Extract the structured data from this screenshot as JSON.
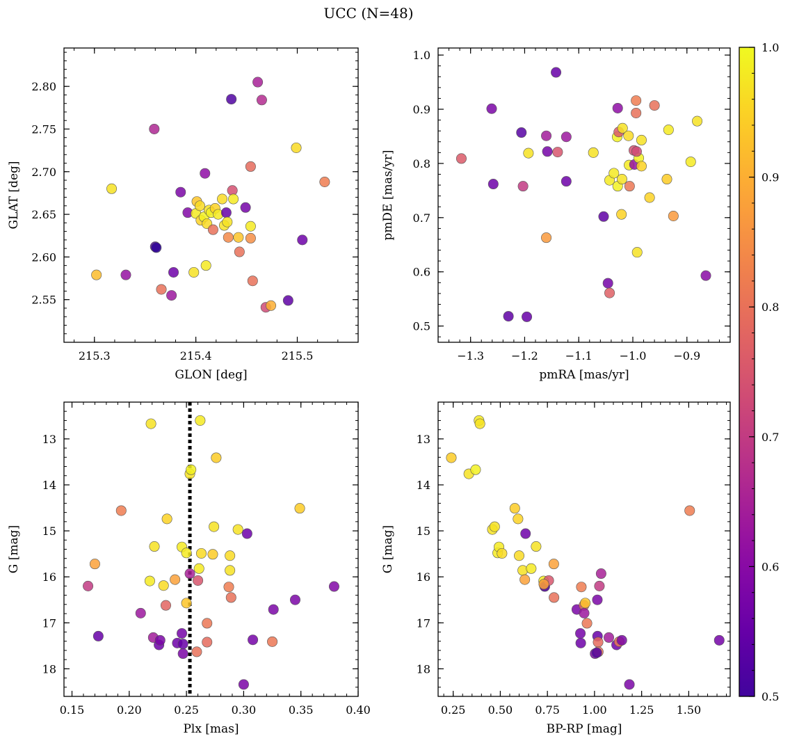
{
  "figure": {
    "title": "UCC (N=48)",
    "colorbar": {
      "vmin": 0.5,
      "vmax": 1.0,
      "ticks": [
        0.5,
        0.6,
        0.7,
        0.8,
        0.9,
        1.0
      ],
      "tick_labels": [
        "0.5",
        "0.6",
        "0.7",
        "0.8",
        "0.9",
        "1.0"
      ],
      "cmap": "plasma"
    },
    "colors": {
      "axis": "#000000",
      "marker_edge": "#555555",
      "vline": "#000000"
    }
  },
  "chart_data": [
    {
      "type": "scatter",
      "title": "",
      "xlabel": "GLON [deg]",
      "ylabel": "GLAT [deg]",
      "xlim": [
        215.27,
        215.56
      ],
      "ylim": [
        2.5,
        2.845
      ],
      "xticks": [
        215.3,
        215.4,
        215.5
      ],
      "xtick_labels": [
        "215.3",
        "215.4",
        "215.5"
      ],
      "yticks": [
        2.55,
        2.6,
        2.65,
        2.7,
        2.75,
        2.8
      ],
      "ytick_labels": [
        "2.55",
        "2.60",
        "2.65",
        "2.70",
        "2.75",
        "2.80"
      ],
      "xminor": 0.02,
      "yminor": 0.01,
      "points": [
        [
          215.302,
          2.579,
          0.92
        ],
        [
          215.317,
          2.68,
          0.97
        ],
        [
          215.331,
          2.579,
          0.62
        ],
        [
          215.359,
          2.75,
          0.66
        ],
        [
          215.36,
          2.612,
          0.52
        ],
        [
          215.361,
          2.611,
          0.48
        ],
        [
          215.366,
          2.562,
          0.8
        ],
        [
          215.376,
          2.555,
          0.63
        ],
        [
          215.378,
          2.582,
          0.56
        ],
        [
          215.385,
          2.676,
          0.58
        ],
        [
          215.392,
          2.652,
          0.59
        ],
        [
          215.409,
          2.698,
          0.61
        ],
        [
          215.4,
          2.651,
          0.98
        ],
        [
          215.401,
          2.665,
          0.93
        ],
        [
          215.404,
          2.66,
          0.96
        ],
        [
          215.405,
          2.643,
          0.95
        ],
        [
          215.408,
          2.647,
          0.99
        ],
        [
          215.411,
          2.639,
          0.96
        ],
        [
          215.413,
          2.655,
          0.97
        ],
        [
          215.415,
          2.652,
          0.99
        ],
        [
          215.417,
          2.632,
          0.8
        ],
        [
          215.419,
          2.657,
          0.95
        ],
        [
          215.422,
          2.65,
          0.98
        ],
        [
          215.426,
          2.668,
          0.96
        ],
        [
          215.428,
          2.637,
          0.97
        ],
        [
          215.43,
          2.652,
          0.55
        ],
        [
          215.431,
          2.641,
          0.97
        ],
        [
          215.432,
          2.623,
          0.84
        ],
        [
          215.435,
          2.785,
          0.52
        ],
        [
          215.436,
          2.678,
          0.74
        ],
        [
          215.437,
          2.668,
          0.98
        ],
        [
          215.442,
          2.623,
          0.93
        ],
        [
          215.443,
          2.606,
          0.8
        ],
        [
          215.449,
          2.658,
          0.57
        ],
        [
          215.454,
          2.636,
          0.98
        ],
        [
          215.454,
          2.622,
          0.85
        ],
        [
          215.454,
          2.706,
          0.79
        ],
        [
          215.456,
          2.572,
          0.8
        ],
        [
          215.461,
          2.805,
          0.65
        ],
        [
          215.465,
          2.784,
          0.67
        ],
        [
          215.469,
          2.541,
          0.73
        ],
        [
          215.474,
          2.543,
          0.9
        ],
        [
          215.41,
          2.59,
          0.98
        ],
        [
          215.398,
          2.582,
          0.97
        ],
        [
          215.491,
          2.549,
          0.54
        ],
        [
          215.499,
          2.728,
          0.96
        ],
        [
          215.505,
          2.62,
          0.56
        ],
        [
          215.527,
          2.688,
          0.82
        ]
      ]
    },
    {
      "type": "scatter",
      "title": "",
      "xlabel": "pmRA [mas/yr]",
      "ylabel": "pmDE [mas/yr]",
      "xlim": [
        -1.36,
        -0.82
      ],
      "ylim": [
        0.47,
        1.013
      ],
      "xticks": [
        -1.3,
        -1.2,
        -1.1,
        -1.0,
        -0.9
      ],
      "xtick_labels": [
        "−1.3",
        "−1.2",
        "−1.1",
        "−1.0",
        "−0.9"
      ],
      "yticks": [
        0.5,
        0.6,
        0.7,
        0.8,
        0.9,
        1.0
      ],
      "ytick_labels": [
        "0.5",
        "0.6",
        "0.7",
        "0.8",
        "0.9",
        "1.0"
      ],
      "xminor": 0.02,
      "yminor": 0.02,
      "points": [
        [
          -1.317,
          0.809,
          0.76
        ],
        [
          -1.261,
          0.901,
          0.58
        ],
        [
          -1.258,
          0.762,
          0.56
        ],
        [
          -1.206,
          0.857,
          0.53
        ],
        [
          -1.203,
          0.758,
          0.7
        ],
        [
          -1.193,
          0.819,
          0.97
        ],
        [
          -1.23,
          0.518,
          0.54
        ],
        [
          -1.196,
          0.517,
          0.55
        ],
        [
          -1.16,
          0.851,
          0.64
        ],
        [
          -1.158,
          0.822,
          0.57
        ],
        [
          -1.16,
          0.663,
          0.87
        ],
        [
          -1.139,
          0.821,
          0.75
        ],
        [
          -1.142,
          0.968,
          0.55
        ],
        [
          -1.123,
          0.849,
          0.63
        ],
        [
          -1.123,
          0.767,
          0.56
        ],
        [
          -1.073,
          0.82,
          0.97
        ],
        [
          -1.054,
          0.702,
          0.54
        ],
        [
          -1.046,
          0.579,
          0.57
        ],
        [
          -1.043,
          0.561,
          0.77
        ],
        [
          -1.043,
          0.769,
          0.98
        ],
        [
          -1.035,
          0.782,
          0.98
        ],
        [
          -1.028,
          0.902,
          0.61
        ],
        [
          -1.029,
          0.849,
          0.99
        ],
        [
          -1.026,
          0.858,
          0.76
        ],
        [
          -1.019,
          0.865,
          0.97
        ],
        [
          -1.028,
          0.758,
          0.99
        ],
        [
          -1.02,
          0.771,
          0.97
        ],
        [
          -1.021,
          0.706,
          0.95
        ],
        [
          -1.007,
          0.797,
          0.98
        ],
        [
          -1.008,
          0.851,
          0.96
        ],
        [
          -1.006,
          0.758,
          0.81
        ],
        [
          -0.998,
          0.824,
          0.74
        ],
        [
          -0.997,
          0.798,
          0.62
        ],
        [
          -0.994,
          0.916,
          0.82
        ],
        [
          -0.994,
          0.893,
          0.8
        ],
        [
          -0.992,
          0.636,
          0.97
        ],
        [
          -0.989,
          0.81,
          0.99
        ],
        [
          -0.984,
          0.843,
          0.97
        ],
        [
          -0.984,
          0.795,
          0.95
        ],
        [
          -0.969,
          0.737,
          0.95
        ],
        [
          -0.96,
          0.907,
          0.8
        ],
        [
          -0.937,
          0.771,
          0.94
        ],
        [
          -0.934,
          0.862,
          0.98
        ],
        [
          -0.925,
          0.703,
          0.87
        ],
        [
          -0.893,
          0.803,
          0.98
        ],
        [
          -0.881,
          0.878,
          0.97
        ],
        [
          -0.865,
          0.593,
          0.6
        ],
        [
          -0.993,
          0.822,
          0.73
        ]
      ]
    },
    {
      "type": "scatter",
      "title": "",
      "xlabel": "Plx [mas]",
      "ylabel": "G [mag]",
      "xlim": [
        0.143,
        0.4
      ],
      "ylim": [
        18.6,
        12.2
      ],
      "xticks": [
        0.15,
        0.2,
        0.25,
        0.3,
        0.35,
        0.4
      ],
      "xtick_labels": [
        "0.15",
        "0.20",
        "0.25",
        "0.30",
        "0.35",
        "0.40"
      ],
      "yticks": [
        13,
        14,
        15,
        16,
        17,
        18
      ],
      "ytick_labels": [
        "13",
        "14",
        "15",
        "16",
        "17",
        "18"
      ],
      "xminor": 0.01,
      "yminor": 0.2,
      "vline": 0.253,
      "points": [
        [
          0.164,
          16.2,
          0.7
        ],
        [
          0.17,
          15.72,
          0.88
        ],
        [
          0.173,
          17.29,
          0.55
        ],
        [
          0.193,
          14.56,
          0.82
        ],
        [
          0.21,
          16.79,
          0.63
        ],
        [
          0.219,
          12.67,
          0.97
        ],
        [
          0.218,
          16.09,
          0.98
        ],
        [
          0.221,
          17.32,
          0.64
        ],
        [
          0.222,
          15.34,
          0.97
        ],
        [
          0.226,
          17.48,
          0.56
        ],
        [
          0.227,
          17.38,
          0.58
        ],
        [
          0.23,
          16.19,
          0.96
        ],
        [
          0.233,
          14.74,
          0.95
        ],
        [
          0.232,
          16.62,
          0.78
        ],
        [
          0.24,
          16.06,
          0.88
        ],
        [
          0.242,
          17.44,
          0.56
        ],
        [
          0.246,
          15.35,
          0.98
        ],
        [
          0.246,
          17.23,
          0.57
        ],
        [
          0.247,
          17.67,
          0.58
        ],
        [
          0.247,
          17.46,
          0.55
        ],
        [
          0.25,
          15.48,
          0.98
        ],
        [
          0.25,
          16.57,
          0.93
        ],
        [
          0.253,
          13.76,
          0.97
        ],
        [
          0.253,
          15.93,
          0.65
        ],
        [
          0.254,
          13.67,
          0.99
        ],
        [
          0.259,
          17.63,
          0.8
        ],
        [
          0.26,
          16.08,
          0.75
        ],
        [
          0.261,
          15.82,
          0.98
        ],
        [
          0.262,
          12.6,
          0.98
        ],
        [
          0.263,
          15.49,
          0.96
        ],
        [
          0.268,
          17.01,
          0.81
        ],
        [
          0.268,
          17.42,
          0.79
        ],
        [
          0.273,
          15.51,
          0.94
        ],
        [
          0.274,
          14.91,
          0.97
        ],
        [
          0.276,
          13.41,
          0.94
        ],
        [
          0.287,
          16.22,
          0.82
        ],
        [
          0.288,
          15.54,
          0.96
        ],
        [
          0.288,
          15.86,
          0.97
        ],
        [
          0.289,
          16.45,
          0.8
        ],
        [
          0.295,
          14.97,
          0.97
        ],
        [
          0.3,
          18.34,
          0.58
        ],
        [
          0.303,
          15.06,
          0.56
        ],
        [
          0.308,
          17.37,
          0.57
        ],
        [
          0.325,
          17.41,
          0.81
        ],
        [
          0.326,
          16.71,
          0.58
        ],
        [
          0.345,
          16.5,
          0.58
        ],
        [
          0.349,
          14.51,
          0.94
        ],
        [
          0.379,
          16.21,
          0.59
        ]
      ]
    },
    {
      "type": "scatter",
      "title": "",
      "xlabel": "BP-RP [mag]",
      "ylabel": "G [mag]",
      "xlim": [
        0.17,
        1.72
      ],
      "ylim": [
        18.6,
        12.2
      ],
      "xticks": [
        0.25,
        0.5,
        0.75,
        1.0,
        1.25,
        1.5
      ],
      "xtick_labels": [
        "0.25",
        "0.50",
        "0.75",
        "1.00",
        "1.25",
        "1.50"
      ],
      "yticks": [
        13,
        14,
        15,
        16,
        17,
        18
      ],
      "ytick_labels": [
        "13",
        "14",
        "15",
        "16",
        "17",
        "18"
      ],
      "xminor": 0.05,
      "yminor": 0.2,
      "points": [
        [
          0.24,
          13.41,
          0.94
        ],
        [
          0.333,
          13.76,
          0.97
        ],
        [
          0.369,
          13.67,
          0.99
        ],
        [
          0.387,
          12.6,
          0.98
        ],
        [
          0.392,
          12.67,
          0.97
        ],
        [
          0.458,
          14.97,
          0.97
        ],
        [
          0.47,
          14.91,
          0.97
        ],
        [
          0.486,
          15.48,
          0.98
        ],
        [
          0.493,
          15.35,
          0.98
        ],
        [
          0.509,
          15.49,
          0.96
        ],
        [
          0.577,
          14.51,
          0.94
        ],
        [
          0.594,
          14.74,
          0.95
        ],
        [
          0.6,
          15.54,
          0.96
        ],
        [
          0.619,
          15.86,
          0.97
        ],
        [
          0.63,
          16.06,
          0.88
        ],
        [
          0.634,
          15.06,
          0.56
        ],
        [
          0.664,
          15.82,
          0.98
        ],
        [
          0.69,
          15.34,
          0.97
        ],
        [
          0.73,
          16.09,
          0.98
        ],
        [
          0.734,
          16.19,
          0.96
        ],
        [
          0.736,
          16.21,
          0.52
        ],
        [
          0.757,
          16.08,
          0.75
        ],
        [
          0.784,
          15.72,
          0.88
        ],
        [
          0.785,
          16.45,
          0.8
        ],
        [
          0.906,
          16.71,
          0.58
        ],
        [
          0.925,
          17.23,
          0.57
        ],
        [
          0.927,
          17.44,
          0.56
        ],
        [
          0.93,
          16.22,
          0.82
        ],
        [
          0.944,
          16.62,
          0.78
        ],
        [
          0.945,
          16.79,
          0.63
        ],
        [
          0.951,
          16.57,
          0.93
        ],
        [
          0.96,
          17.01,
          0.81
        ],
        [
          1.003,
          17.67,
          0.58
        ],
        [
          1.015,
          16.5,
          0.58
        ],
        [
          1.016,
          17.29,
          0.55
        ],
        [
          1.019,
          17.42,
          0.79
        ],
        [
          1.02,
          17.63,
          0.8
        ],
        [
          1.026,
          16.2,
          0.7
        ],
        [
          1.035,
          15.93,
          0.65
        ],
        [
          1.076,
          17.32,
          0.64
        ],
        [
          1.117,
          17.48,
          0.56
        ],
        [
          1.131,
          17.41,
          0.81
        ],
        [
          1.145,
          17.38,
          0.58
        ],
        [
          1.185,
          18.34,
          0.58
        ],
        [
          1.505,
          14.56,
          0.82
        ],
        [
          1.662,
          17.38,
          0.57
        ],
        [
          1.012,
          17.65,
          0.52
        ],
        [
          0.731,
          16.16,
          0.88
        ]
      ]
    }
  ]
}
